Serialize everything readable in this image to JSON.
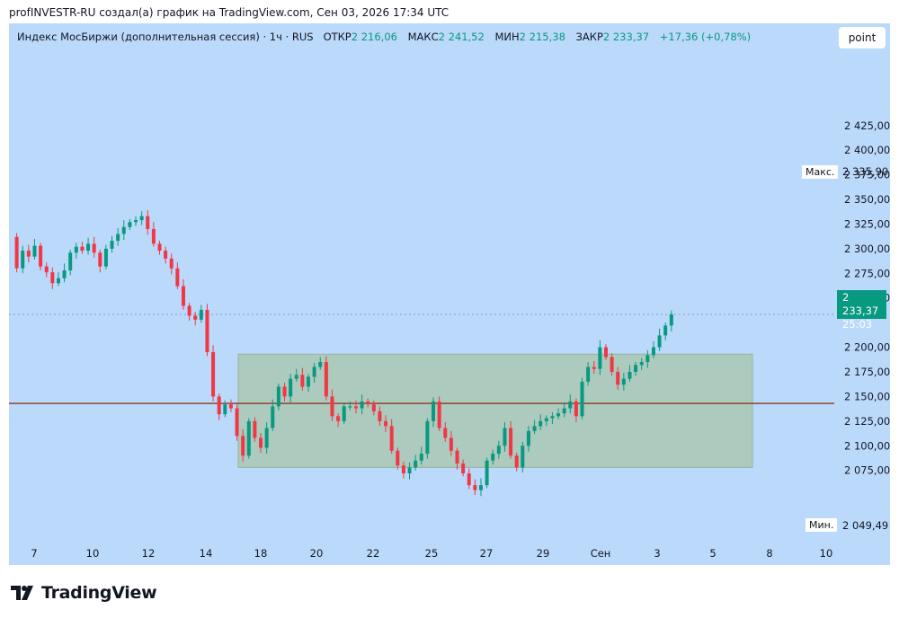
{
  "header": {
    "title": "profINVESTR-RU создал(а) график на TradingView.com, Сен 03, 2026 17:34 UTC"
  },
  "legend": {
    "symbol": "Индекс МосБиржи (дополнительная сессия) · 1ч · RUS",
    "open_label": "ОТКР",
    "open": "2 216,06",
    "high_label": "МАКС",
    "high": "2 241,52",
    "low_label": "МИН",
    "low": "2 215,38",
    "close_label": "ЗАКР",
    "close": "2 233,37",
    "change": "+17,36 (+0,78%)"
  },
  "scale_button": "point",
  "price_tag": {
    "price": "2 233,37",
    "countdown": "25:03"
  },
  "max_tag": {
    "label": "Макс.",
    "value": "2 335,90"
  },
  "min_tag": {
    "label": "Мин.",
    "value": "2 049,49"
  },
  "footer": {
    "brand": "TradingView"
  },
  "colors": {
    "background": "#bbd9fb",
    "up": "#089981",
    "down": "#f23645",
    "hline": "#8a4a2f",
    "box": "#a7c4a8"
  },
  "chart_data": {
    "type": "candlestick",
    "y_ticks": [
      "2 425,00",
      "2 400,00",
      "2 375,00",
      "2 350,00",
      "2 325,00",
      "2 300,00",
      "2 275,00",
      "2 250,00",
      "2 200,00",
      "2 175,00",
      "2 150,00",
      "2 125,00",
      "2 100,00",
      "2 075,00"
    ],
    "x_ticks": [
      "7",
      "10",
      "12",
      "14",
      "18",
      "20",
      "22",
      "25",
      "27",
      "29",
      "Сен",
      "3",
      "5",
      "8",
      "10"
    ],
    "ylim": [
      2030,
      2440
    ],
    "horizontal_line": 2143,
    "range_box": {
      "from": "16",
      "to": "5",
      "top": 2193,
      "bottom": 2078
    },
    "last_price": 2233.37,
    "ohlc_path": [
      [
        1,
        2312
      ],
      [
        2,
        2280
      ],
      [
        3,
        2298
      ],
      [
        4,
        2292
      ],
      [
        5,
        2303
      ],
      [
        6,
        2282
      ],
      [
        7,
        2276
      ],
      [
        8,
        2265
      ],
      [
        9,
        2270
      ],
      [
        10,
        2278
      ],
      [
        11,
        2296
      ],
      [
        12,
        2302
      ],
      [
        13,
        2298
      ],
      [
        14,
        2305
      ],
      [
        15,
        2296
      ],
      [
        16,
        2282
      ],
      [
        17,
        2300
      ],
      [
        18,
        2308
      ],
      [
        19,
        2315
      ],
      [
        20,
        2322
      ],
      [
        21,
        2327
      ],
      [
        22,
        2329
      ],
      [
        23,
        2333
      ],
      [
        24,
        2320
      ],
      [
        25,
        2305
      ],
      [
        26,
        2298
      ],
      [
        27,
        2290
      ],
      [
        28,
        2280
      ],
      [
        29,
        2262
      ],
      [
        30,
        2242
      ],
      [
        31,
        2232
      ],
      [
        32,
        2228
      ],
      [
        33,
        2238
      ],
      [
        34,
        2195
      ],
      [
        35,
        2150
      ],
      [
        36,
        2132
      ],
      [
        37,
        2142
      ],
      [
        38,
        2138
      ],
      [
        39,
        2110
      ],
      [
        40,
        2090
      ],
      [
        41,
        2125
      ],
      [
        42,
        2108
      ],
      [
        43,
        2098
      ],
      [
        44,
        2118
      ],
      [
        45,
        2140
      ],
      [
        46,
        2160
      ],
      [
        47,
        2150
      ],
      [
        48,
        2168
      ],
      [
        49,
        2172
      ],
      [
        50,
        2160
      ],
      [
        51,
        2170
      ],
      [
        52,
        2180
      ],
      [
        53,
        2185
      ],
      [
        54,
        2150
      ],
      [
        55,
        2130
      ],
      [
        56,
        2125
      ],
      [
        57,
        2140
      ],
      [
        58,
        2140
      ],
      [
        59,
        2138
      ],
      [
        60,
        2145
      ],
      [
        61,
        2142
      ],
      [
        62,
        2135
      ],
      [
        63,
        2125
      ],
      [
        64,
        2120
      ],
      [
        65,
        2095
      ],
      [
        66,
        2080
      ],
      [
        67,
        2072
      ],
      [
        68,
        2078
      ],
      [
        69,
        2085
      ],
      [
        70,
        2092
      ],
      [
        71,
        2125
      ],
      [
        72,
        2145
      ],
      [
        73,
        2118
      ],
      [
        74,
        2108
      ],
      [
        75,
        2095
      ],
      [
        76,
        2082
      ],
      [
        77,
        2072
      ],
      [
        78,
        2060
      ],
      [
        79,
        2055
      ],
      [
        80,
        2060
      ],
      [
        81,
        2085
      ],
      [
        82,
        2092
      ],
      [
        83,
        2100
      ],
      [
        84,
        2118
      ],
      [
        85,
        2090
      ],
      [
        86,
        2078
      ],
      [
        87,
        2100
      ],
      [
        88,
        2115
      ],
      [
        89,
        2120
      ],
      [
        90,
        2125
      ],
      [
        91,
        2128
      ],
      [
        92,
        2130
      ],
      [
        93,
        2133
      ],
      [
        94,
        2138
      ],
      [
        95,
        2145
      ],
      [
        96,
        2130
      ],
      [
        97,
        2165
      ],
      [
        98,
        2180
      ],
      [
        99,
        2178
      ],
      [
        100,
        2200
      ],
      [
        101,
        2190
      ],
      [
        102,
        2175
      ],
      [
        103,
        2162
      ],
      [
        104,
        2168
      ],
      [
        105,
        2175
      ],
      [
        106,
        2182
      ],
      [
        107,
        2185
      ],
      [
        108,
        2192
      ],
      [
        109,
        2200
      ],
      [
        110,
        2212
      ],
      [
        111,
        2222
      ],
      [
        112,
        2233.37
      ]
    ]
  }
}
